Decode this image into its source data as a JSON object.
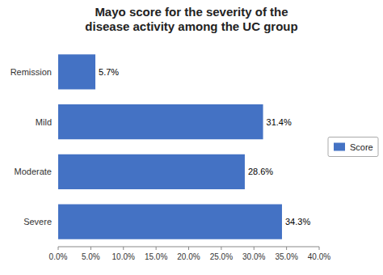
{
  "chart_data": {
    "type": "bar",
    "orientation": "horizontal",
    "title": "Mayo score for the severity of the\ndisease activity among the UC group",
    "categories": [
      "Severe",
      "Moderate",
      "Mild",
      "Remission"
    ],
    "series": [
      {
        "name": "Score",
        "color": "#4472C4",
        "values": [
          34.3,
          28.6,
          31.4,
          5.7
        ],
        "value_labels": [
          "34.3%",
          "28.6%",
          "31.4%",
          "5.7%"
        ]
      }
    ],
    "data_labels": true,
    "xlim": [
      0,
      40
    ],
    "xticks": [
      {
        "value": 0,
        "label": "0.0%"
      },
      {
        "value": 5,
        "label": "5.0%"
      },
      {
        "value": 10,
        "label": "10.0%"
      },
      {
        "value": 15,
        "label": "15.0%"
      },
      {
        "value": 20,
        "label": "20.0%"
      },
      {
        "value": 25,
        "label": "25.0%"
      },
      {
        "value": 30,
        "label": "30.0%"
      },
      {
        "value": 35,
        "label": "35.0%"
      },
      {
        "value": 40,
        "label": "40.0%"
      }
    ],
    "grid": false,
    "legend": "right"
  }
}
